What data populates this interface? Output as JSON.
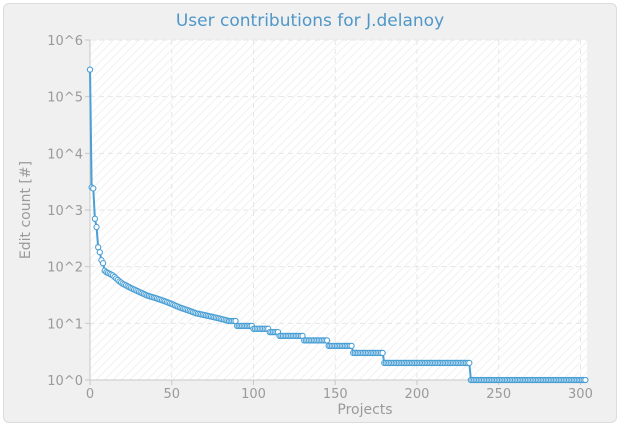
{
  "chart_data": {
    "type": "line",
    "title": "User contributions for J.delanoy",
    "xlabel": "Projects",
    "ylabel": "Edit count [#]",
    "y_scale": "log",
    "xlim": [
      0,
      304
    ],
    "ylim": [
      1,
      1000000
    ],
    "x_ticks": [
      0,
      50,
      100,
      150,
      200,
      250,
      300
    ],
    "y_ticks": [
      1,
      10,
      100,
      1000,
      10000,
      100000,
      1000000
    ],
    "y_tick_labels": [
      "10^0",
      "10^1",
      "10^2",
      "10^3",
      "10^4",
      "10^5",
      "10^6"
    ],
    "grid": true,
    "series": [
      {
        "key_points": [
          [
            0,
            300000
          ],
          [
            1,
            2500
          ],
          [
            2,
            2400
          ],
          [
            3,
            700
          ],
          [
            4,
            500
          ],
          [
            5,
            220
          ],
          [
            6,
            180
          ],
          [
            7,
            130
          ],
          [
            8,
            115
          ],
          [
            9,
            85
          ],
          [
            10,
            80
          ],
          [
            12,
            75
          ],
          [
            14,
            70
          ],
          [
            16,
            62
          ],
          [
            18,
            55
          ],
          [
            20,
            50
          ],
          [
            25,
            42
          ],
          [
            30,
            36
          ],
          [
            35,
            31
          ],
          [
            40,
            28
          ],
          [
            45,
            25
          ],
          [
            50,
            22
          ],
          [
            55,
            19
          ],
          [
            60,
            17
          ],
          [
            65,
            15
          ],
          [
            70,
            14
          ],
          [
            75,
            13
          ],
          [
            80,
            12
          ],
          [
            85,
            11
          ],
          [
            88,
            11
          ],
          [
            90,
            9
          ],
          [
            95,
            9
          ],
          [
            99,
            9
          ],
          [
            100,
            8
          ],
          [
            108,
            8
          ],
          [
            110,
            7
          ],
          [
            115,
            7
          ],
          [
            116,
            6
          ],
          [
            130,
            6
          ],
          [
            131,
            5
          ],
          [
            145,
            5
          ],
          [
            146,
            4
          ],
          [
            160,
            4
          ],
          [
            161,
            3
          ],
          [
            179,
            3
          ],
          [
            180,
            2
          ],
          [
            232,
            2
          ],
          [
            233,
            1
          ],
          [
            303,
            1
          ]
        ]
      }
    ],
    "colors": {
      "line": "#4a9fd5",
      "marker_fill": "#ffffff",
      "title": "#4f97c9"
    }
  }
}
